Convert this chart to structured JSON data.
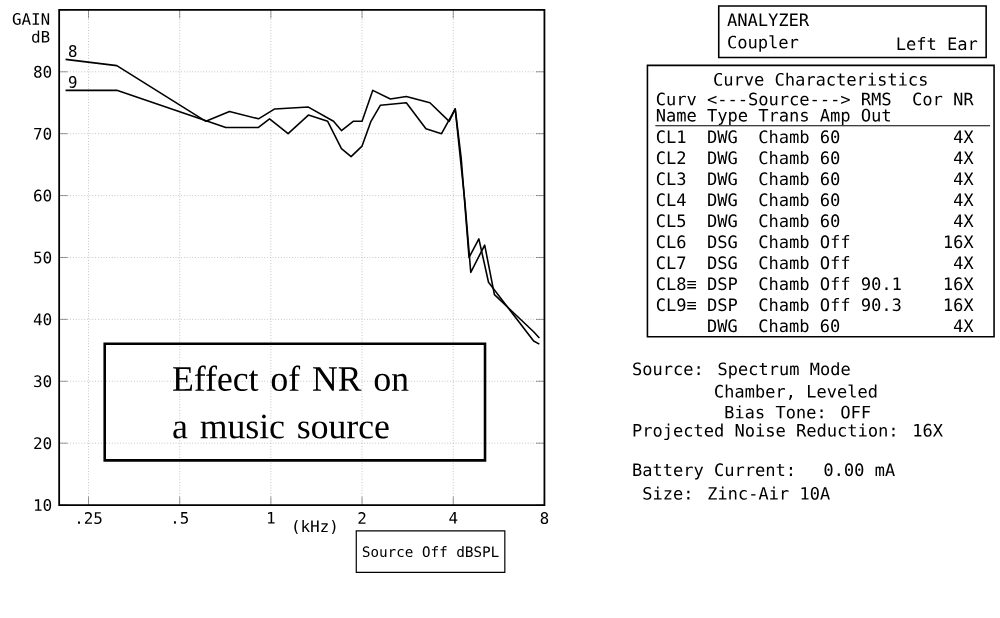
{
  "chart_data": {
    "type": "line",
    "ylabel": "GAIN dB",
    "xlabel": "(kHz)",
    "log": "x",
    "xlim": [
      0.2,
      8
    ],
    "ylim": [
      10,
      90
    ],
    "xticks": [
      {
        "value": 0.25,
        "label": ".25"
      },
      {
        "value": 0.5,
        "label": ".5"
      },
      1,
      2,
      4,
      8
    ],
    "yticks": [
      10,
      20,
      30,
      40,
      50,
      60,
      70,
      80,
      {
        "value": 90,
        "label": null
      }
    ],
    "grid": true,
    "series": [
      {
        "name": "8",
        "color": "#000000",
        "x": [
          0.21,
          0.31,
          0.61,
          0.73,
          0.91,
          1.03,
          1.33,
          1.61,
          1.71,
          1.87,
          2.0,
          2.17,
          2.48,
          2.8,
          3.35,
          3.88,
          4.06,
          4.25,
          4.51,
          4.86,
          5.23,
          7.37,
          7.7
        ],
        "values": [
          82,
          81,
          72,
          73.6,
          72.4,
          74,
          74.3,
          72,
          70.5,
          72,
          72,
          77,
          75.6,
          76,
          75,
          72,
          74,
          66,
          50,
          53,
          46,
          36.5,
          36
        ]
      },
      {
        "name": "9",
        "color": "#000000",
        "x": [
          0.21,
          0.31,
          0.71,
          0.91,
          0.99,
          1.14,
          1.33,
          1.54,
          1.71,
          1.84,
          2.0,
          2.14,
          2.3,
          2.8,
          3.25,
          3.66,
          4.06,
          4.37,
          4.57,
          5.08,
          5.47,
          7.37,
          7.7
        ],
        "values": [
          77,
          77,
          71,
          71,
          72.4,
          70,
          73,
          72,
          67.6,
          66.3,
          68,
          72,
          74.6,
          75,
          70.8,
          70,
          74,
          59,
          47.6,
          52,
          44,
          38,
          37
        ]
      }
    ],
    "annotations": [
      "Effect of NR on a music source",
      "Source Off dBSPL",
      "ANALYZER",
      "Coupler",
      "Left Ear",
      "Curve Characteristics",
      "Curv <---Source---> RMS  Cor NR",
      "Name Type Trans Amp Out",
      "CL1  DWG  Chamb 60           4X",
      "CL2  DWG  Chamb 60           4X",
      "CL3  DWG  Chamb 60           4X",
      "CL4  DWG  Chamb 60           4X",
      "CL5  DWG  Chamb 60           4X",
      "CL6  DSG  Chamb Off         16X",
      "CL7  DSG  Chamb Off          4X",
      "CL8≡ DSP  Chamb Off 90.1    16X",
      "CL9≡ DSP  Chamb Off 90.3    16X",
      "DWG  Chamb 60           4X",
      "Source: Spectrum Mode",
      "Chamber, Leveled",
      "Bias Tone: OFF",
      "Projected Noise Reduction: 16X",
      "Battery Current:  0.00 mA",
      "Size: Zinc-Air 10A"
    ]
  }
}
